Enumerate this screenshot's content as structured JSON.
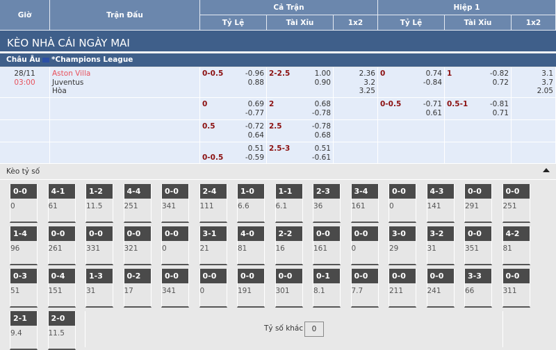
{
  "header": {
    "gio": "Giờ",
    "tran_dau": "Trận Đấu",
    "ca_tran": "Cả Trận",
    "hiep1": "Hiệp 1",
    "ty_le": "Tỷ Lệ",
    "tai_xiu": "Tài Xỉu",
    "x12": "1x2"
  },
  "title": "KÈO NHÀ CÁI NGÀY MAI",
  "league": {
    "region": "Châu Âu",
    "name": "*Champions League"
  },
  "match": {
    "date": "28/11",
    "time": "03:00",
    "home": "Aston Villa",
    "away": "Juventus",
    "draw": "Hòa"
  },
  "rows": [
    {
      "ft_hdp": "0-0.5",
      "ft_hdp_o": [
        "-0.96",
        "0.88"
      ],
      "ft_ou": "2-2.5",
      "ft_ou_o": [
        "1.00",
        "0.90"
      ],
      "ft_1x2": [
        "2.36",
        "3.2",
        "3.25"
      ],
      "h1_hdp": "0",
      "h1_hdp_o": [
        "0.74",
        "-0.84"
      ],
      "h1_ou": "1",
      "h1_ou_o": [
        "-0.82",
        "0.72"
      ],
      "h1_1x2": [
        "3.1",
        "3.7",
        "2.05"
      ]
    },
    {
      "ft_hdp": "0",
      "ft_hdp_o": [
        "0.69",
        "-0.77"
      ],
      "ft_ou": "2",
      "ft_ou_o": [
        "0.68",
        "-0.78"
      ],
      "h1_hdp": "0-0.5",
      "h1_hdp_o": [
        "-0.71",
        "0.61"
      ],
      "h1_ou": "0.5-1",
      "h1_ou_o": [
        "-0.81",
        "0.71"
      ]
    },
    {
      "ft_hdp": "0.5",
      "ft_hdp_o": [
        "-0.72",
        "0.64"
      ],
      "ft_ou": "2.5",
      "ft_ou_o": [
        "-0.78",
        "0.68"
      ]
    },
    {
      "ft_hdp": "0-0.5",
      "ft_hdp_o": [
        "0.51",
        "-0.59"
      ],
      "ft_ou": "2.5-3",
      "ft_ou_o": [
        "0.51",
        "-0.61"
      ]
    }
  ],
  "score_section": {
    "title": "Kèo tỷ số",
    "other_label": "Tỷ số khác",
    "other_value": "0"
  },
  "scores": [
    [
      "0-0",
      "0"
    ],
    [
      "4-1",
      "61"
    ],
    [
      "1-2",
      "11.5"
    ],
    [
      "4-4",
      "251"
    ],
    [
      "0-0",
      "341"
    ],
    [
      "2-4",
      "111"
    ],
    [
      "1-0",
      "6.6"
    ],
    [
      "1-1",
      "6.1"
    ],
    [
      "2-3",
      "36"
    ],
    [
      "3-4",
      "161"
    ],
    [
      "0-0",
      "0"
    ],
    [
      "4-3",
      "141"
    ],
    [
      "0-0",
      "291"
    ],
    [
      "0-0",
      "251"
    ],
    [
      "1-4",
      "96"
    ],
    [
      "0-0",
      "261"
    ],
    [
      "0-0",
      "331"
    ],
    [
      "0-0",
      "321"
    ],
    [
      "0-0",
      "0"
    ],
    [
      "3-1",
      "21"
    ],
    [
      "4-0",
      "81"
    ],
    [
      "2-2",
      "16"
    ],
    [
      "0-0",
      "161"
    ],
    [
      "0-0",
      "0"
    ],
    [
      "3-0",
      "29"
    ],
    [
      "3-2",
      "31"
    ],
    [
      "0-0",
      "351"
    ],
    [
      "4-2",
      "81"
    ],
    [
      "0-3",
      "51"
    ],
    [
      "0-4",
      "151"
    ],
    [
      "1-3",
      "31"
    ],
    [
      "0-2",
      "17"
    ],
    [
      "0-0",
      "341"
    ],
    [
      "0-0",
      "0"
    ],
    [
      "0-0",
      "191"
    ],
    [
      "0-0",
      "301"
    ],
    [
      "0-1",
      "8.1"
    ],
    [
      "0-0",
      "7.7"
    ],
    [
      "0-0",
      "211"
    ],
    [
      "0-0",
      "241"
    ],
    [
      "3-3",
      "66"
    ],
    [
      "0-0",
      "311"
    ],
    [
      "2-1",
      "9.4"
    ],
    [
      "2-0",
      "11.5"
    ]
  ]
}
